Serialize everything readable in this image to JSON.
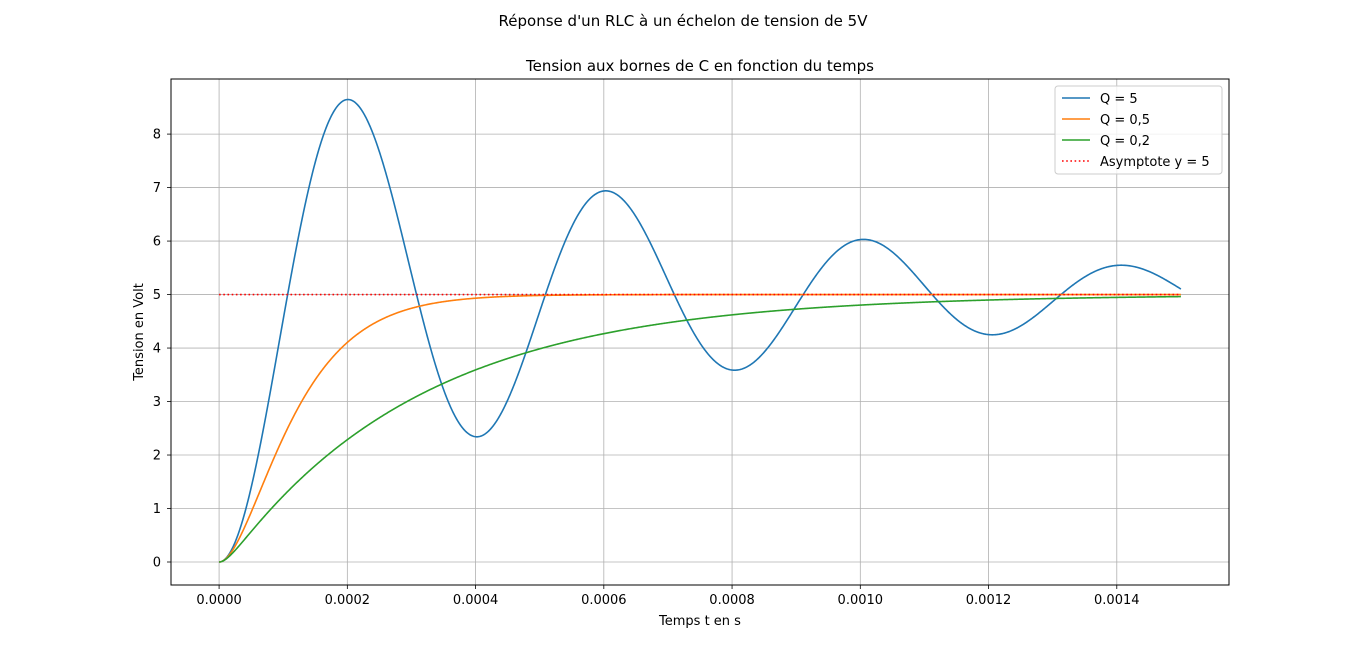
{
  "figure": {
    "suptitle": "Réponse d'un RLC à un échelon de tension de 5V"
  },
  "chart_data": {
    "type": "line",
    "title": "Tension aux bornes de C en fonction du temps",
    "xlabel": "Temps t en s",
    "ylabel": "Tension en Volt",
    "xlim": [
      -7.5e-05,
      0.001575
    ],
    "ylim": [
      -0.43,
      9.03
    ],
    "xticks": [
      0,
      0.0002,
      0.0004,
      0.0006,
      0.0008,
      0.001,
      0.0012,
      0.0014
    ],
    "xtick_labels": [
      "0.0000",
      "0.0002",
      "0.0004",
      "0.0006",
      "0.0008",
      "0.0010",
      "0.0012",
      "0.0014"
    ],
    "yticks": [
      0,
      1,
      2,
      3,
      4,
      5,
      6,
      7,
      8
    ],
    "ytick_labels": [
      "0",
      "1",
      "2",
      "3",
      "4",
      "5",
      "6",
      "7",
      "8"
    ],
    "grid": true,
    "legend_position": "top-right",
    "step_voltage": 5,
    "omega0": 15708,
    "t_end": 0.0015,
    "series": [
      {
        "name": "Q = 5",
        "Q": 5,
        "color": "#1f77b4",
        "style": "solid"
      },
      {
        "name": "Q = 0,5",
        "Q": 0.5,
        "color": "#ff7f0e",
        "style": "solid"
      },
      {
        "name": "Q = 0,2",
        "Q": 0.2,
        "color": "#2ca02c",
        "style": "solid"
      },
      {
        "name": "Asymptote y = 5",
        "value": 5,
        "color": "#ff0000",
        "style": "dotted"
      }
    ]
  }
}
